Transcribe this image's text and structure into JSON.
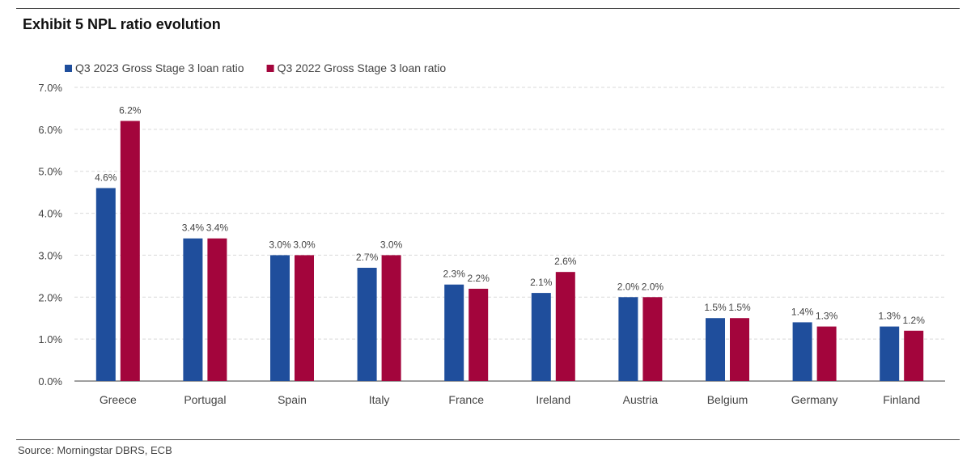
{
  "title": "Exhibit 5 NPL ratio evolution",
  "source": "Source: Morningstar DBRS, ECB",
  "colors": {
    "q3_2023": "#1f4e9c",
    "q3_2022": "#a3053c",
    "grid": "#d9d9d9",
    "axis": "#666666",
    "text": "#444444"
  },
  "chart_data": {
    "type": "bar",
    "title": "Exhibit 5 NPL ratio evolution",
    "xlabel": "",
    "ylabel": "",
    "categories": [
      "Greece",
      "Portugal",
      "Spain",
      "Italy",
      "France",
      "Ireland",
      "Austria",
      "Belgium",
      "Germany",
      "Finland"
    ],
    "series": [
      {
        "name": "Q3 2023 Gross Stage 3 loan ratio",
        "color": "#1f4e9c",
        "values": [
          4.6,
          3.4,
          3.0,
          2.7,
          2.3,
          2.1,
          2.0,
          1.5,
          1.4,
          1.3
        ],
        "labels": [
          "4.6%",
          "3.4%",
          "3.0%",
          "2.7%",
          "2.3%",
          "2.1%",
          "2.0%",
          "1.5%",
          "1.4%",
          "1.3%"
        ]
      },
      {
        "name": "Q3 2022 Gross Stage 3 loan ratio",
        "color": "#a3053c",
        "values": [
          6.2,
          3.4,
          3.0,
          3.0,
          2.2,
          2.6,
          2.0,
          1.5,
          1.3,
          1.2
        ],
        "labels": [
          "6.2%",
          "3.4%",
          "3.0%",
          "3.0%",
          "2.2%",
          "2.6%",
          "2.0%",
          "1.5%",
          "1.3%",
          "1.2%"
        ]
      }
    ],
    "ylim": [
      0,
      7
    ],
    "yticks": [
      0,
      1,
      2,
      3,
      4,
      5,
      6,
      7
    ],
    "ytick_labels": [
      "0.0%",
      "1.0%",
      "2.0%",
      "3.0%",
      "4.0%",
      "5.0%",
      "6.0%",
      "7.0%"
    ],
    "grid": true,
    "legend_position": "top-left"
  }
}
